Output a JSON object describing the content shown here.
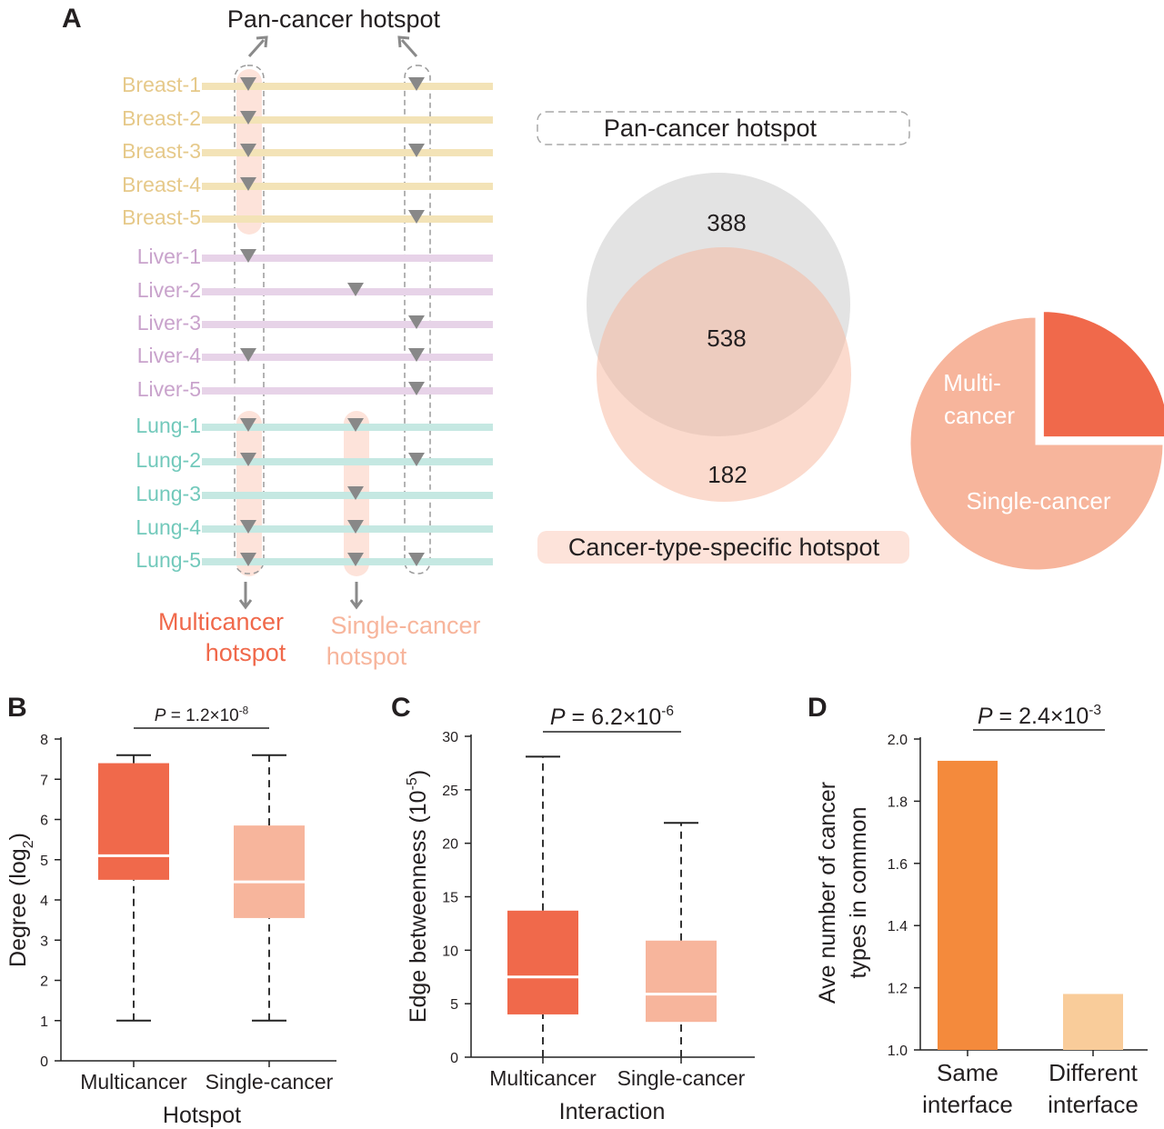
{
  "colors": {
    "breast": "#e6c98a",
    "breast_line": "#f3e3b7",
    "liver": "#c9a3cc",
    "liver_line": "#e7d3e8",
    "lung": "#72c9bb",
    "lung_line": "#c5e8e2",
    "multi": "#f0694b",
    "single": "#f7b59c",
    "single_light": "#fde3da",
    "grey_circle": "#e3e3e3",
    "marker": "#888888",
    "bar_same": "#f48a3c",
    "bar_diff": "#f9cc9a",
    "text": "#231f20"
  },
  "panel_a": {
    "label": "A",
    "top_label": "Pan-cancer hotspot",
    "samples": [
      {
        "name": "Breast-1",
        "group": "breast",
        "markers": [
          "multi",
          "pan"
        ]
      },
      {
        "name": "Breast-2",
        "group": "breast",
        "markers": [
          "multi"
        ]
      },
      {
        "name": "Breast-3",
        "group": "breast",
        "markers": [
          "multi",
          "pan"
        ]
      },
      {
        "name": "Breast-4",
        "group": "breast",
        "markers": [
          "multi"
        ]
      },
      {
        "name": "Breast-5",
        "group": "breast",
        "markers": [
          "pan"
        ]
      },
      {
        "name": "Liver-1",
        "group": "liver",
        "markers": [
          "multi"
        ]
      },
      {
        "name": "Liver-2",
        "group": "liver",
        "markers": [
          "mid"
        ]
      },
      {
        "name": "Liver-3",
        "group": "liver",
        "markers": [
          "pan"
        ]
      },
      {
        "name": "Liver-4",
        "group": "liver",
        "markers": [
          "multi",
          "pan"
        ]
      },
      {
        "name": "Liver-5",
        "group": "liver",
        "markers": [
          "pan"
        ]
      },
      {
        "name": "Lung-1",
        "group": "lung",
        "markers": [
          "multi",
          "single"
        ]
      },
      {
        "name": "Lung-2",
        "group": "lung",
        "markers": [
          "multi",
          "pan"
        ]
      },
      {
        "name": "Lung-3",
        "group": "lung",
        "markers": [
          "single"
        ]
      },
      {
        "name": "Lung-4",
        "group": "lung",
        "markers": [
          "multi",
          "single"
        ]
      },
      {
        "name": "Lung-5",
        "group": "lung",
        "markers": [
          "multi",
          "single",
          "pan"
        ]
      }
    ],
    "multi_label": [
      "Multicancer",
      "hotspot"
    ],
    "single_label": [
      "Single-cancer",
      "hotspot"
    ],
    "venn": {
      "top_label": "Pan-cancer hotspot",
      "bottom_label": "Cancer-type-specific hotspot",
      "pan_only": "388",
      "overlap": "538",
      "specific_only": "182"
    },
    "pie": {
      "slices": [
        {
          "label": [
            "Multi-",
            "cancer"
          ],
          "value": 0.25,
          "color_key": "multi"
        },
        {
          "label": [
            "Single-cancer"
          ],
          "value": 0.75,
          "color_key": "single"
        }
      ]
    }
  },
  "chart_data": [
    {
      "panel": "B",
      "type": "box",
      "categories": [
        "Multicancer",
        "Single-cancer"
      ],
      "xlabel": "Hotspot",
      "ylabel_main": "Degree (log",
      "ylabel_sub": "2",
      "ylabel_end": ")",
      "ylim": [
        0,
        8
      ],
      "yticks": [
        0,
        1,
        2,
        3,
        4,
        5,
        6,
        7,
        8
      ],
      "boxes": [
        {
          "min": 1.0,
          "q1": 4.5,
          "median": 5.1,
          "q3": 7.4,
          "max": 7.6,
          "color_key": "multi"
        },
        {
          "min": 1.0,
          "q1": 3.55,
          "median": 4.45,
          "q3": 5.85,
          "max": 7.6,
          "color_key": "single"
        }
      ],
      "pvalue": {
        "p": "P",
        "eq": " = 1.2×10",
        "exp": "-8"
      }
    },
    {
      "panel": "C",
      "type": "box",
      "categories": [
        "Multicancer",
        "Single-cancer"
      ],
      "xlabel": "Interaction",
      "ylabel_main": "Edge betweenness (10",
      "ylabel_sub": "-5",
      "ylabel_end": ")",
      "ylim": [
        0,
        30
      ],
      "yticks": [
        0,
        5,
        10,
        15,
        20,
        25,
        30
      ],
      "boxes": [
        {
          "min": 0,
          "q1": 4.0,
          "median": 7.5,
          "q3": 13.7,
          "max": 28.1,
          "color_key": "multi"
        },
        {
          "min": 0,
          "q1": 3.3,
          "median": 5.9,
          "q3": 10.9,
          "max": 21.9,
          "color_key": "single"
        }
      ],
      "pvalue": {
        "p": "P",
        "eq": " = 6.2×10",
        "exp": "-6"
      }
    },
    {
      "panel": "D",
      "type": "bar",
      "categories": [
        [
          "Same",
          "interface"
        ],
        [
          "Different",
          "interface"
        ]
      ],
      "values": [
        1.93,
        1.18
      ],
      "ylabel": [
        "Ave number of cancer",
        "types in common"
      ],
      "ylim": [
        1.0,
        2.0
      ],
      "yticks": [
        "1.0",
        "1.2",
        "1.4",
        "1.6",
        "1.8",
        "2.0"
      ],
      "color_keys": [
        "bar_same",
        "bar_diff"
      ],
      "pvalue": {
        "p": "P",
        "eq": " = 2.4×10",
        "exp": "-3"
      }
    }
  ]
}
